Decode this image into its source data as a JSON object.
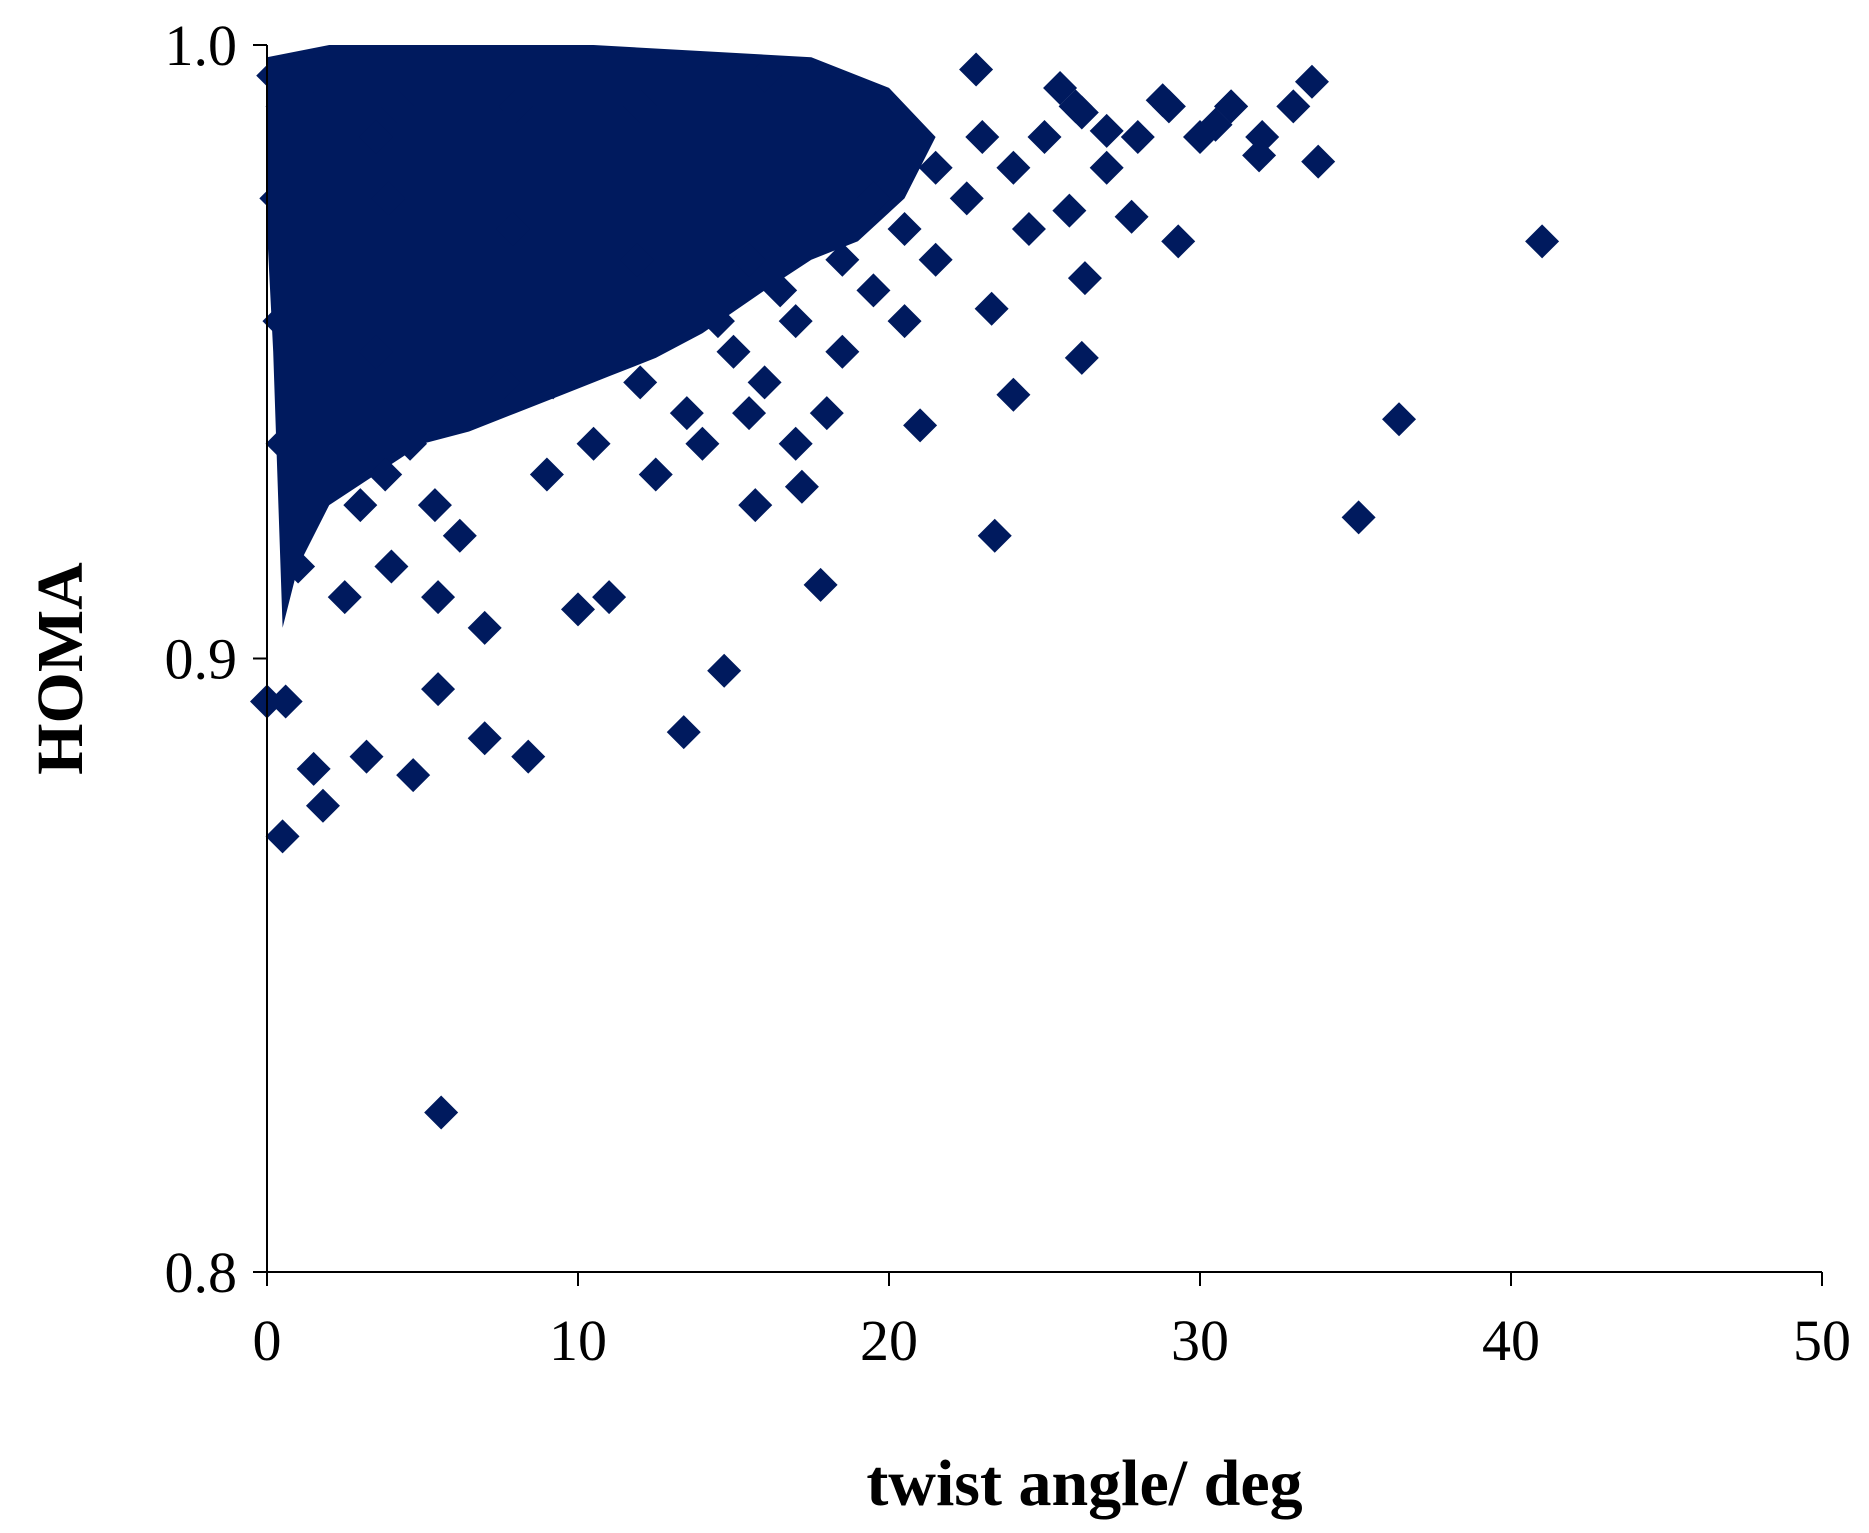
{
  "chart_data": {
    "type": "scatter",
    "title": "",
    "xlabel": "twist angle/ deg",
    "ylabel": "HOMA",
    "xlim": [
      0,
      50
    ],
    "ylim": [
      0.8,
      1.0
    ],
    "x_ticks": [
      "0",
      "10",
      "20",
      "30",
      "40",
      "50"
    ],
    "y_ticks": [
      "0.8",
      "0.9",
      "1.0"
    ],
    "grid": false,
    "legend": "none",
    "marker": "diamond",
    "marker_color": "#001a5e",
    "series": [
      {
        "x": [
          0.2,
          0.5,
          0.8,
          1.5,
          2.0,
          2.8,
          3.5,
          4.2,
          5.0,
          6.0,
          7.0,
          8.0,
          9.0,
          10.0,
          11.0,
          12.0,
          13.0,
          14.0,
          15.0,
          16.0,
          17.0,
          18.0,
          0.3,
          0.9,
          1.6,
          2.4,
          3.1,
          3.9,
          4.7,
          5.5,
          6.3,
          7.1,
          7.9,
          8.7,
          9.5,
          10.3,
          11.1,
          11.9,
          12.7,
          13.5,
          0.4,
          1.1,
          1.9,
          2.7,
          3.5,
          4.4,
          5.2,
          6.0,
          6.8,
          7.6,
          8.4,
          9.2,
          0.5,
          1.3,
          2.1,
          3.0,
          3.8,
          4.6,
          5.4,
          6.2,
          1.0,
          2.5,
          4.0,
          5.5,
          7.0,
          13.0,
          14.5,
          15.5,
          16.5,
          17.5,
          18.5,
          19.5,
          20.5,
          21.5,
          22.5,
          23.0,
          24.0,
          25.0,
          26.0,
          27.0,
          28.0,
          29.0,
          30.0,
          31.0,
          32.0,
          33.0,
          12.0,
          13.5,
          15.0,
          16.0,
          17.0,
          18.5,
          19.5,
          20.5,
          21.5,
          9.0,
          10.5,
          12.5,
          14.0,
          15.5,
          17.0,
          22.8,
          25.5,
          26.2,
          27.0,
          28.8,
          30.5,
          31.0,
          31.9,
          33.6,
          33.8,
          41.0,
          29.3,
          27.8,
          26.3,
          25.8,
          24.5,
          24.0,
          23.3,
          26.2,
          21.0,
          23.4,
          36.4,
          35.1,
          17.8,
          18.0,
          14.7,
          13.4,
          17.2,
          15.7,
          11.0,
          10.0,
          8.4,
          7.0,
          5.6,
          5.5,
          4.7,
          3.2,
          1.8,
          1.5,
          0.5,
          0.6,
          0.0
        ],
        "y": [
          0.995,
          0.99,
          0.985,
          0.995,
          0.99,
          0.995,
          0.985,
          0.99,
          0.995,
          0.99,
          0.985,
          0.99,
          0.995,
          0.99,
          0.985,
          0.99,
          0.995,
          0.985,
          0.99,
          0.995,
          0.99,
          0.985,
          0.975,
          0.97,
          0.975,
          0.965,
          0.97,
          0.975,
          0.965,
          0.97,
          0.975,
          0.965,
          0.97,
          0.975,
          0.965,
          0.97,
          0.975,
          0.965,
          0.97,
          0.96,
          0.955,
          0.95,
          0.955,
          0.945,
          0.95,
          0.955,
          0.945,
          0.95,
          0.955,
          0.945,
          0.95,
          0.945,
          0.935,
          0.93,
          0.935,
          0.925,
          0.93,
          0.935,
          0.925,
          0.92,
          0.915,
          0.91,
          0.915,
          0.91,
          0.905,
          0.96,
          0.955,
          0.965,
          0.96,
          0.97,
          0.965,
          0.975,
          0.97,
          0.98,
          0.975,
          0.985,
          0.98,
          0.985,
          0.99,
          0.98,
          0.985,
          0.99,
          0.985,
          0.99,
          0.985,
          0.99,
          0.945,
          0.94,
          0.95,
          0.945,
          0.955,
          0.95,
          0.96,
          0.955,
          0.965,
          0.93,
          0.935,
          0.93,
          0.935,
          0.94,
          0.935,
          0.996,
          0.993,
          0.989,
          0.986,
          0.991,
          0.987,
          0.99,
          0.982,
          0.994,
          0.981,
          0.968,
          0.968,
          0.972,
          0.962,
          0.973,
          0.97,
          0.943,
          0.957,
          0.949,
          0.938,
          0.92,
          0.939,
          0.923,
          0.912,
          0.94,
          0.898,
          0.888,
          0.928,
          0.925,
          0.91,
          0.908,
          0.884,
          0.887,
          0.826,
          0.895,
          0.881,
          0.884,
          0.876,
          0.882,
          0.871,
          0.893,
          0.893
        ]
      }
    ]
  }
}
